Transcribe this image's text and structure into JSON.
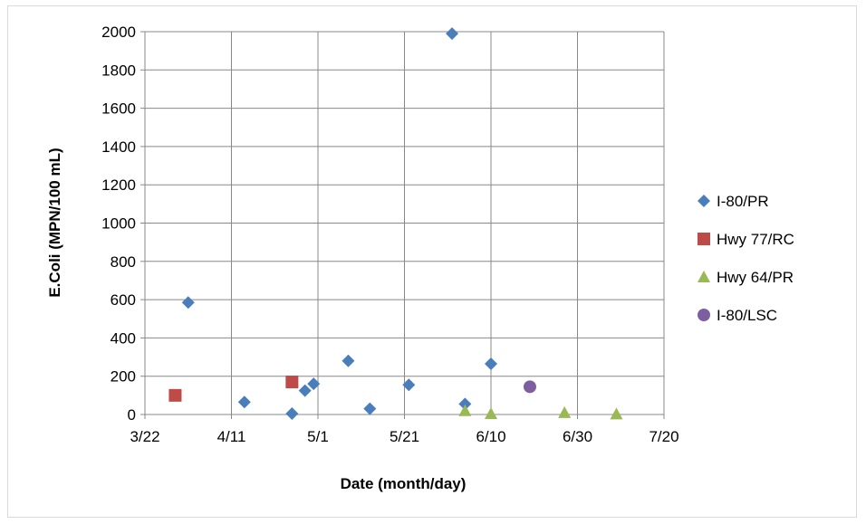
{
  "chart_data": {
    "type": "scatter",
    "title": "",
    "xlabel": "Date (month/day)",
    "ylabel": "E.Coli (MPN/100 mL)",
    "ylim": [
      0,
      2000
    ],
    "yticks": [
      "0",
      "200",
      "400",
      "600",
      "800",
      "1000",
      "1200",
      "1400",
      "1600",
      "1800",
      "2000"
    ],
    "xlim": [
      "3/22",
      "7/20"
    ],
    "xticks": [
      "3/22",
      "4/11",
      "5/1",
      "5/21",
      "6/10",
      "6/30",
      "7/20"
    ],
    "grid": true,
    "legend_position": "right",
    "series": [
      {
        "name": "I-80/PR",
        "marker": "diamond",
        "color": "#4a7ebb",
        "points": [
          {
            "x": "4/1",
            "y": 585
          },
          {
            "x": "4/14",
            "y": 65
          },
          {
            "x": "4/25",
            "y": 5
          },
          {
            "x": "4/28",
            "y": 125
          },
          {
            "x": "4/30",
            "y": 160
          },
          {
            "x": "5/8",
            "y": 280
          },
          {
            "x": "5/13",
            "y": 30
          },
          {
            "x": "5/22",
            "y": 155
          },
          {
            "x": "6/1",
            "y": 1990
          },
          {
            "x": "6/4",
            "y": 55
          },
          {
            "x": "6/10",
            "y": 265
          }
        ]
      },
      {
        "name": "Hwy 77/RC",
        "marker": "square",
        "color": "#be4b48",
        "points": [
          {
            "x": "3/29",
            "y": 100
          },
          {
            "x": "4/25",
            "y": 170
          }
        ]
      },
      {
        "name": "Hwy 64/PR",
        "marker": "triangle",
        "color": "#98b954",
        "points": [
          {
            "x": "6/4",
            "y": 20
          },
          {
            "x": "6/10",
            "y": 5
          },
          {
            "x": "6/27",
            "y": 10
          },
          {
            "x": "7/9",
            "y": 3
          }
        ]
      },
      {
        "name": "I-80/LSC",
        "marker": "circle",
        "color": "#7d5fa0",
        "points": [
          {
            "x": "6/19",
            "y": 145
          }
        ]
      }
    ]
  }
}
